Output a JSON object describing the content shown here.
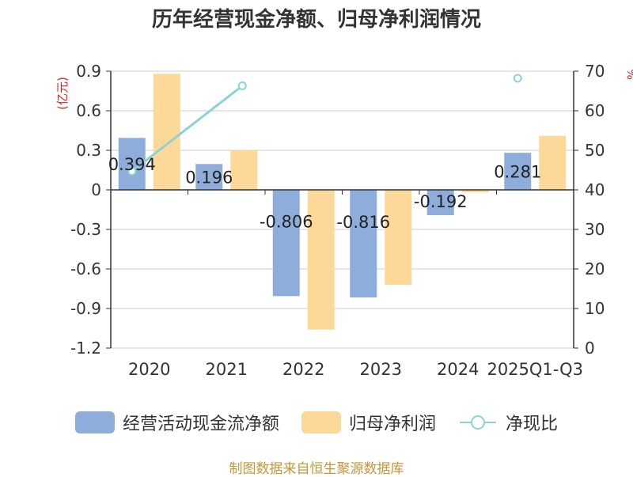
{
  "title": "历年经营现金净额、归母净利润情况",
  "source": "制图数据来自恒生聚源数据库",
  "colors": {
    "operating_cash_flow": "#8eaddb",
    "net_profit": "#fdd999",
    "ratio_line": "#8dd3d6",
    "axis_unit": "#d9231f",
    "source": "#c6963a",
    "grid": "#cccccc",
    "axis": "#333333"
  },
  "chart_data": {
    "type": "bar",
    "title": "历年经营现金净额、归母净利润情况",
    "categories": [
      "2020",
      "2021",
      "2022",
      "2023",
      "2024",
      "2025Q1-Q3"
    ],
    "series": [
      {
        "name": "经营活动现金流净额",
        "axis": "left",
        "type": "bar",
        "values": [
          0.394,
          0.196,
          -0.806,
          -0.816,
          -0.192,
          0.281
        ],
        "data_labels": [
          "0.394",
          "0.196",
          "-0.806",
          "-0.816",
          "-0.192",
          "0.281"
        ]
      },
      {
        "name": "归母净利润",
        "axis": "left",
        "type": "bar",
        "values": [
          0.88,
          0.3,
          -1.06,
          -0.72,
          -0.02,
          0.41
        ]
      },
      {
        "name": "净现比",
        "axis": "right",
        "type": "line",
        "values": [
          44.7,
          66.3,
          null,
          null,
          null,
          68.2
        ]
      }
    ],
    "y_left": {
      "unit_label": "(亿元)",
      "ylim": [
        -1.2,
        0.9
      ],
      "ticks": [
        0.9,
        0.6,
        0.3,
        0,
        -0.3,
        -0.6,
        -0.9,
        -1.2
      ],
      "tick_labels": [
        "0.9",
        "0.6",
        "0.3",
        "0",
        "-0.3",
        "-0.6",
        "-0.9",
        "-1.2"
      ]
    },
    "y_right": {
      "unit_label": "%",
      "ylim": [
        0,
        70
      ],
      "ticks": [
        70,
        60,
        50,
        40,
        30,
        20,
        10,
        0
      ],
      "tick_labels": [
        "70",
        "60",
        "50",
        "40",
        "30",
        "20",
        "10",
        "0"
      ]
    },
    "grid": true,
    "legend_position": "bottom"
  }
}
